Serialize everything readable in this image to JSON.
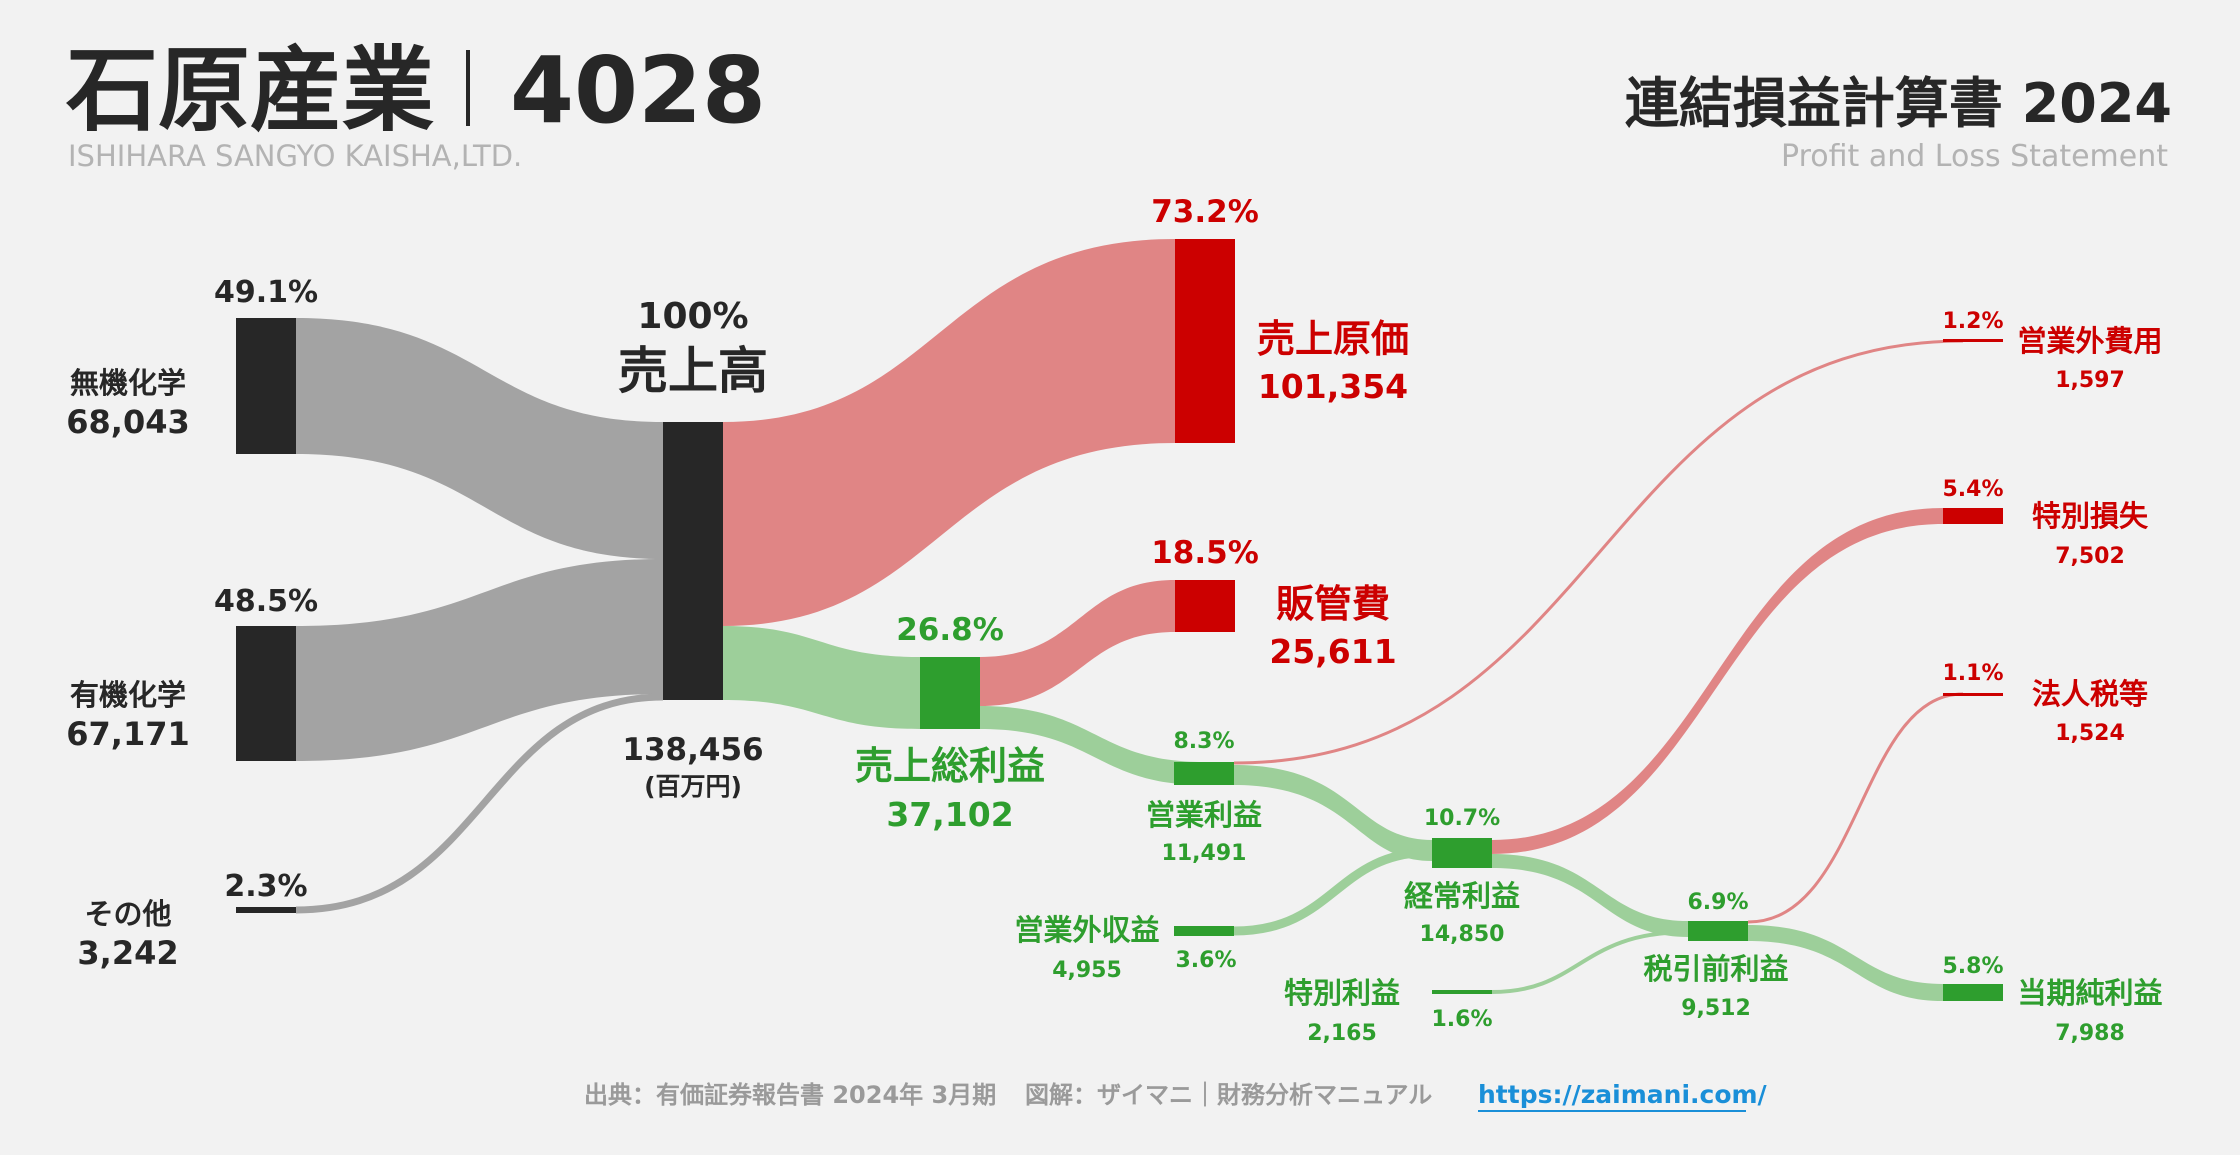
{
  "header": {
    "company_name": "石原産業",
    "ticker": "4028",
    "company_name_en": "ISHIHARA SANGYO KAISHA,LTD.",
    "statement_title": "連結損益計算書 2024",
    "statement_title_en": "Profit and Loss Statement"
  },
  "colors": {
    "dark": "#272727",
    "gray_flow": "#a3a3a3",
    "red": "#cc0000",
    "red_flow": "#e08585",
    "green": "#2e9e2e",
    "green_flow": "#9dcf9a",
    "footer_link": "#1a8fd8"
  },
  "nodes": {
    "inorganic": {
      "label": "無機化学",
      "value": "68,043",
      "pct": "49.1%"
    },
    "organic": {
      "label": "有機化学",
      "value": "67,171",
      "pct": "48.5%"
    },
    "other": {
      "label": "その他",
      "value": "3,242",
      "pct": "2.3%"
    },
    "revenue": {
      "label": "売上高",
      "value": "138,456",
      "unit": "(百万円)",
      "pct": "100%"
    },
    "cogs": {
      "label": "売上原価",
      "value": "101,354",
      "pct": "73.2%"
    },
    "sga": {
      "label": "販管費",
      "value": "25,611",
      "pct": "18.5%"
    },
    "gross_profit": {
      "label": "売上総利益",
      "value": "37,102",
      "pct": "26.8%"
    },
    "operating_profit": {
      "label": "営業利益",
      "value": "11,491",
      "pct": "8.3%"
    },
    "non_op_income": {
      "label": "営業外収益",
      "value": "4,955",
      "pct": "3.6%"
    },
    "non_op_expense": {
      "label": "営業外費用",
      "value": "1,597",
      "pct": "1.2%"
    },
    "ordinary_profit": {
      "label": "経常利益",
      "value": "14,850",
      "pct": "10.7%"
    },
    "extraordinary_gain": {
      "label": "特別利益",
      "value": "2,165",
      "pct": "1.6%"
    },
    "extraordinary_loss": {
      "label": "特別損失",
      "value": "7,502",
      "pct": "5.4%"
    },
    "pretax_profit": {
      "label": "税引前利益",
      "value": "9,512",
      "pct": "6.9%"
    },
    "income_tax": {
      "label": "法人税等",
      "value": "1,524",
      "pct": "1.1%"
    },
    "net_income": {
      "label": "当期純利益",
      "value": "7,988",
      "pct": "5.8%"
    }
  },
  "footer": {
    "source": "出典：有価証券報告書 2024年 3月期",
    "credit": "図解：ザイマニ｜財務分析マニュアル",
    "url": "https://zaimani.com/"
  }
}
